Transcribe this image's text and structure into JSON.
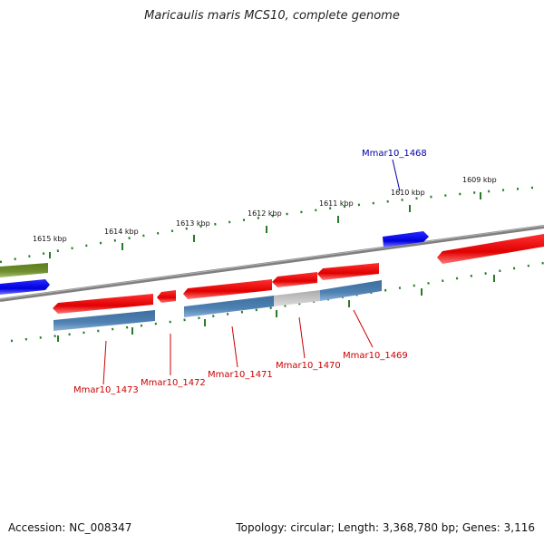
{
  "title": "Maricaulis maris MCS10, complete genome",
  "footer": {
    "accession": "Accession: NC_008347",
    "summary": "Topology: circular; Length: 3,368,780 bp; Genes: 3,116"
  },
  "ticks": [
    "1615 kbp",
    "1614 kbp",
    "1613 kbp",
    "1612 kbp",
    "1611 kbp",
    "1610 kbp",
    "1609 kbp"
  ],
  "genes": [
    {
      "name": "Mmar10_1468",
      "color": "#0000aa"
    },
    {
      "name": "Mmar10_1469",
      "color": "#cc0000"
    },
    {
      "name": "Mmar10_1470",
      "color": "#cc0000"
    },
    {
      "name": "Mmar10_1471",
      "color": "#cc0000"
    },
    {
      "name": "Mmar10_1472",
      "color": "#cc0000"
    },
    {
      "name": "Mmar10_1473",
      "color": "#cc0000"
    }
  ],
  "colors": {
    "forward_gene": "#ee0000",
    "reverse_gene": "#0000ee",
    "cds_blue": "#4a7db0",
    "other_gene": "#6a8a2a",
    "gray_segment": "#bbbbbb",
    "tick_mark": "#2a7a2a",
    "backbone": "#808080"
  }
}
